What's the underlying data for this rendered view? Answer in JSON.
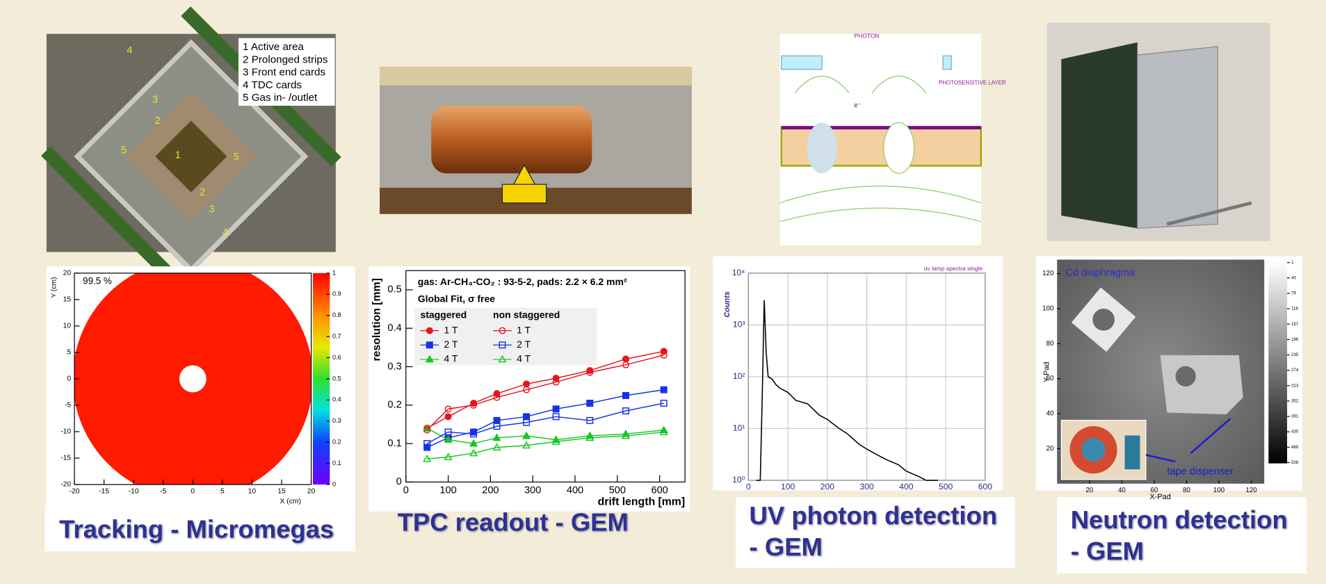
{
  "tracking_photo": {
    "legend": [
      "1 Active area",
      "2 Prolonged strips",
      "3 Front end cards",
      "4 TDC cards",
      "5 Gas in- /outlet"
    ],
    "marks": [
      "4",
      "3",
      "2",
      "1",
      "5",
      "5",
      "2",
      "3",
      "4"
    ]
  },
  "gem_diagram": {
    "photon": "PHOTON",
    "layer": "PHOTOSENSITIVE LAYER",
    "electron": "e⁻"
  },
  "tracking_map": {
    "efficiency": "99.5 %",
    "xlabel": "X (cm)",
    "ylabel": "Y (cm)",
    "xlim": [
      -20,
      20
    ],
    "xticks": [
      -20,
      -15,
      -10,
      -5,
      0,
      5,
      10,
      15,
      20
    ],
    "ylim": [
      -20,
      20
    ],
    "yticks": [
      -20,
      -15,
      -10,
      -5,
      0,
      5,
      10,
      15,
      20
    ],
    "zlim": [
      0,
      1
    ],
    "zticks": [
      0,
      0.1,
      0.2,
      0.3,
      0.4,
      0.5,
      0.6,
      0.7,
      0.8,
      0.9,
      1
    ]
  },
  "resolution_chart": {
    "type": "line",
    "info": [
      "gas:  Ar-CH₄-CO₂ : 93-5-2, pads: 2.2 × 6.2 mm²",
      "Global Fit, σ free"
    ],
    "groups": [
      "staggered",
      "non staggered"
    ],
    "xlabel": "drift length [mm]",
    "ylabel": "resolution [mm]",
    "xlim": [
      0,
      660
    ],
    "xticks": [
      0,
      100,
      200,
      300,
      400,
      500,
      600
    ],
    "ylim": [
      0,
      0.55
    ],
    "yticks": [
      0,
      0.1,
      0.2,
      0.3,
      0.4,
      0.5
    ],
    "x": [
      50,
      100,
      160,
      215,
      285,
      355,
      435,
      520,
      610
    ],
    "series": [
      {
        "name": "1 T",
        "color": "#e8141c",
        "marker": "circle",
        "filled": true,
        "values": [
          0.14,
          0.17,
          0.205,
          0.23,
          0.255,
          0.27,
          0.29,
          0.32,
          0.34
        ]
      },
      {
        "name": "2 T",
        "color": "#1432e6",
        "marker": "square",
        "filled": true,
        "values": [
          0.09,
          0.115,
          0.13,
          0.16,
          0.17,
          0.19,
          0.205,
          0.225,
          0.24
        ]
      },
      {
        "name": "4 T",
        "color": "#14c81e",
        "marker": "triangle",
        "filled": true,
        "values": [
          0.14,
          0.11,
          0.1,
          0.115,
          0.12,
          0.11,
          0.12,
          0.125,
          0.135
        ]
      },
      {
        "name": "1 T",
        "color": "#e8141c",
        "marker": "circle",
        "filled": false,
        "values": [
          0.135,
          0.19,
          0.2,
          0.22,
          0.24,
          0.26,
          0.285,
          0.305,
          0.33
        ]
      },
      {
        "name": "2 T",
        "color": "#1432e6",
        "marker": "square",
        "filled": false,
        "values": [
          0.1,
          0.13,
          0.125,
          0.145,
          0.155,
          0.17,
          0.16,
          0.185,
          0.205
        ]
      },
      {
        "name": "4 T",
        "color": "#14c81e",
        "marker": "triangle",
        "filled": false,
        "values": [
          0.06,
          0.065,
          0.075,
          0.09,
          0.095,
          0.105,
          0.115,
          0.12,
          0.13
        ]
      }
    ]
  },
  "uv_spectrum": {
    "type": "line",
    "title": "uv lamp spectra single",
    "ylabel": "Counts",
    "log_y": true,
    "grid": true,
    "color": "#000000",
    "xlim": [
      0,
      600
    ],
    "xticks": [
      0,
      100,
      200,
      300,
      400,
      500,
      600
    ],
    "ylim": [
      1,
      10000
    ],
    "yticks": [
      {
        "value": 1,
        "label": "10⁰"
      },
      {
        "value": 10,
        "label": "10¹"
      },
      {
        "value": 100,
        "label": "10²"
      },
      {
        "value": 1000,
        "label": "10³"
      },
      {
        "value": 10000,
        "label": "10⁴"
      }
    ],
    "x": [
      20,
      30,
      35,
      40,
      45,
      50,
      60,
      70,
      80,
      100,
      120,
      150,
      180,
      200,
      230,
      250,
      280,
      300,
      330,
      350,
      380,
      400,
      430,
      450,
      480
    ],
    "values": [
      1,
      1,
      40,
      3000,
      300,
      100,
      90,
      70,
      60,
      50,
      35,
      30,
      18,
      15,
      10,
      8,
      5,
      4,
      3,
      2.5,
      2,
      1.5,
      1.2,
      1,
      1
    ]
  },
  "neutron_image": {
    "label": "Cd diaphragma",
    "annotation": "tape dispenser",
    "xlabel": "X-Pad",
    "ylabel": "Y-Pad",
    "xlim": [
      0,
      128
    ],
    "xticks": [
      20,
      40,
      60,
      80,
      100,
      120
    ],
    "ylim": [
      0,
      128
    ],
    "yticks": [
      20,
      40,
      60,
      80,
      100,
      120
    ],
    "zlim": [
      0,
      510
    ],
    "zticks": [
      1,
      40,
      79,
      118,
      157,
      196,
      235,
      274,
      313,
      352,
      391,
      430,
      469,
      508
    ]
  },
  "captions": [
    [
      "Tracking - Micromegas"
    ],
    [
      "TPC readout - GEM"
    ],
    [
      "UV photon detection",
      "- GEM"
    ],
    [
      "Neutron detection",
      "- GEM"
    ]
  ]
}
